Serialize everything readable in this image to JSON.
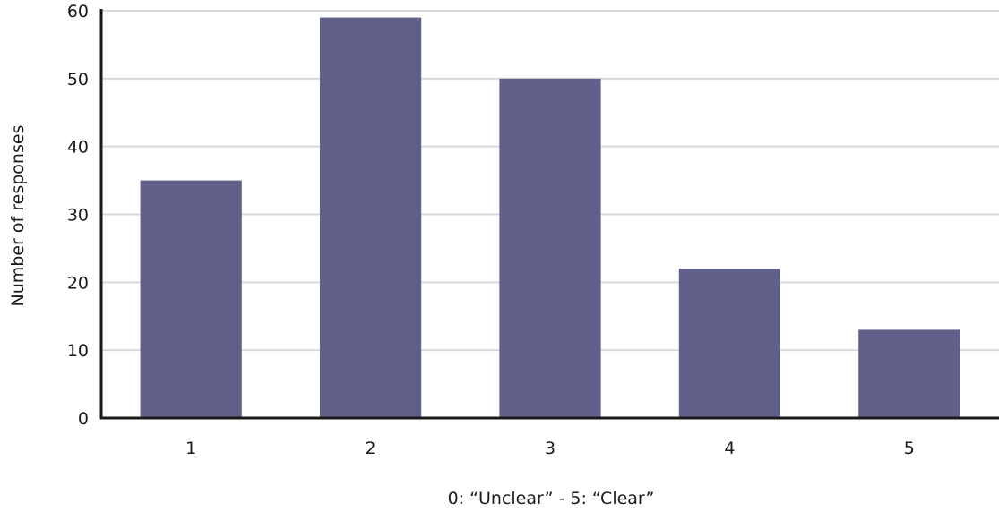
{
  "chart_data": {
    "type": "bar",
    "title": "",
    "xlabel": "0: “Unclear” - 5: “Clear”",
    "ylabel": "Number of responses",
    "categories": [
      "1",
      "2",
      "3",
      "4",
      "5"
    ],
    "values": [
      35,
      59,
      50,
      22,
      13
    ],
    "ylim": [
      0,
      60
    ],
    "yticks": [
      0,
      10,
      20,
      30,
      40,
      50,
      60
    ],
    "grid": true,
    "legend": "none",
    "colors": {
      "bar": "#60608b",
      "grid": "#d9d9d9",
      "axis": "#1a1a1a"
    }
  }
}
